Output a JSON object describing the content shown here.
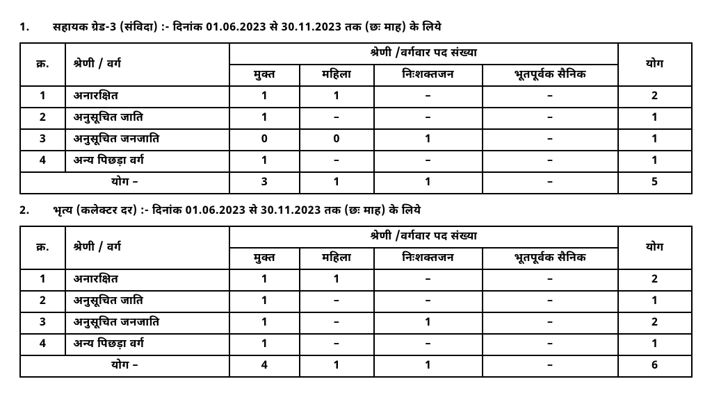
{
  "sections": [
    {
      "num": "1.",
      "title": "सहायक ग्रेड-3 (संविदा) :- दिनांक 01.06.2023 से 30.11.2023 तक (छः माह) के लिये",
      "header": {
        "sr": "क्र.",
        "category": "श्रेणी / वर्ग",
        "groupTitle": "श्रेणी /वर्गवार पद संख्या",
        "cols": [
          "मुक्त",
          "महिला",
          "निःशक्तजन",
          "भूतपूर्वक सैनिक"
        ],
        "total": "योग"
      },
      "rows": [
        {
          "sr": "1",
          "cat": "अनारक्षित",
          "v": [
            "1",
            "1",
            "–",
            "–"
          ],
          "tot": "2"
        },
        {
          "sr": "2",
          "cat": "अनुसूचित जाति",
          "v": [
            "1",
            "–",
            "–",
            "–"
          ],
          "tot": "1"
        },
        {
          "sr": "3",
          "cat": "अनुसूचित जनजाति",
          "v": [
            "0",
            "0",
            "1",
            "–"
          ],
          "tot": "1"
        },
        {
          "sr": "4",
          "cat": "अन्य पिछड़ा वर्ग",
          "v": [
            "1",
            "–",
            "–",
            "–"
          ],
          "tot": "1"
        }
      ],
      "footer": {
        "label": "योग –",
        "v": [
          "3",
          "1",
          "1",
          "–"
        ],
        "tot": "5"
      }
    },
    {
      "num": "2.",
      "title": "भृत्य (कलेक्टर दर) :- दिनांक 01.06.2023 से 30.11.2023 तक (छः माह) के लिये",
      "header": {
        "sr": "क्र.",
        "category": "श्रेणी / वर्ग",
        "groupTitle": "श्रेणी /वर्गवार पद संख्या",
        "cols": [
          "मुक्त",
          "महिला",
          "निःशक्तजन",
          "भूतपूर्वक सैनिक"
        ],
        "total": "योग"
      },
      "rows": [
        {
          "sr": "1",
          "cat": "अनारक्षित",
          "v": [
            "1",
            "1",
            "–",
            "–"
          ],
          "tot": "2"
        },
        {
          "sr": "2",
          "cat": "अनुसूचित जाति",
          "v": [
            "1",
            "–",
            "–",
            "–"
          ],
          "tot": "1"
        },
        {
          "sr": "3",
          "cat": "अनुसूचित जनजाति",
          "v": [
            "1",
            "–",
            "1",
            "–"
          ],
          "tot": "2"
        },
        {
          "sr": "4",
          "cat": "अन्य पिछड़ा वर्ग",
          "v": [
            "1",
            "–",
            "–",
            "–"
          ],
          "tot": "1"
        }
      ],
      "footer": {
        "label": "योग –",
        "v": [
          "4",
          "1",
          "1",
          "–"
        ],
        "tot": "6"
      }
    }
  ]
}
